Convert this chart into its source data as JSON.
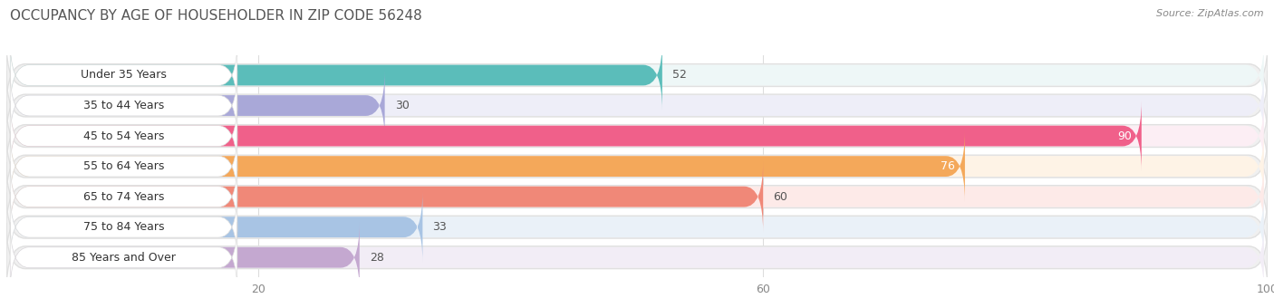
{
  "title": "OCCUPANCY BY AGE OF HOUSEHOLDER IN ZIP CODE 56248",
  "source": "Source: ZipAtlas.com",
  "categories": [
    "Under 35 Years",
    "35 to 44 Years",
    "45 to 54 Years",
    "55 to 64 Years",
    "65 to 74 Years",
    "75 to 84 Years",
    "85 Years and Over"
  ],
  "values": [
    52,
    30,
    90,
    76,
    60,
    33,
    28
  ],
  "bar_colors": [
    "#5bbdba",
    "#a9a8d8",
    "#f0608a",
    "#f4a85a",
    "#f08878",
    "#a8c4e4",
    "#c4a8d0"
  ],
  "bar_bg_colors": [
    "#eef7f7",
    "#eeeef8",
    "#fceef4",
    "#fef3e6",
    "#fdeae8",
    "#eaf1f8",
    "#f2edf6"
  ],
  "row_bg_color": "#f0f0f0",
  "row_border_color": "#e0e0e0",
  "xlim": [
    0,
    100
  ],
  "xticks": [
    20,
    60,
    100
  ],
  "title_fontsize": 11,
  "source_fontsize": 8,
  "label_fontsize": 9,
  "value_fontsize": 9,
  "background_color": "#ffffff"
}
